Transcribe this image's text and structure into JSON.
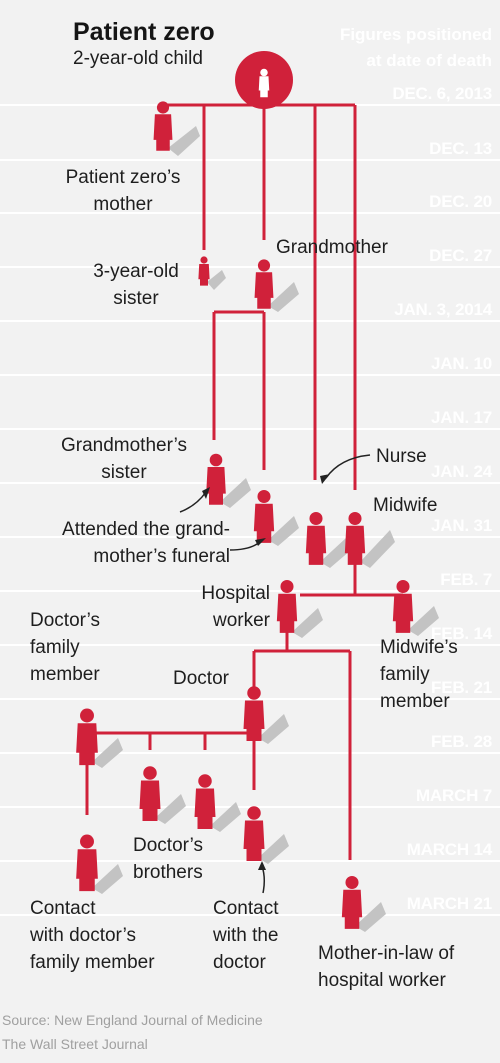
{
  "header": {
    "title": "Patient zero",
    "subtitle": "2-year-old child",
    "note": "Figures positioned\nat date of death"
  },
  "dates": [
    "DEC. 6, 2013",
    "DEC. 13",
    "DEC. 20",
    "DEC. 27",
    "JAN. 3, 2014",
    "JAN. 10",
    "JAN. 17",
    "JAN. 24",
    "JAN. 31",
    "FEB. 7",
    "FEB. 14",
    "FEB. 21",
    "FEB. 28",
    "MARCH 7",
    "MARCH 14",
    "MARCH 21"
  ],
  "people": {
    "patient_zero_mother": "Patient zero’s\nmother",
    "sister": "3-year-old\nsister",
    "grandmother": "Grandmother",
    "grandmother_sister": "Grandmother’s\nsister",
    "funeral_note": "Attended the grand-\nmother’s funeral",
    "nurse": "Nurse",
    "midwife": "Midwife",
    "hospital_worker": "Hospital\nworker",
    "midwife_family": "Midwife’s\nfamily\nmember",
    "doctor_family": "Doctor’s\nfamily\nmember",
    "doctor": "Doctor",
    "doctor_brothers": "Doctor’s\nbrothers",
    "contact_family": "Contact\nwith doctor’s\nfamily member",
    "contact_doctor": "Contact\nwith the\ndoctor",
    "mother_in_law": "Mother-in-law of\nhospital worker"
  },
  "footer": {
    "source": "Source: New England Journal of Medicine",
    "publisher": "The Wall Street Journal"
  },
  "colors": {
    "accent": "#d0213a",
    "band": "#e9e9e9",
    "background": "#f2f2f2",
    "shadow": "#c2c2c2"
  }
}
